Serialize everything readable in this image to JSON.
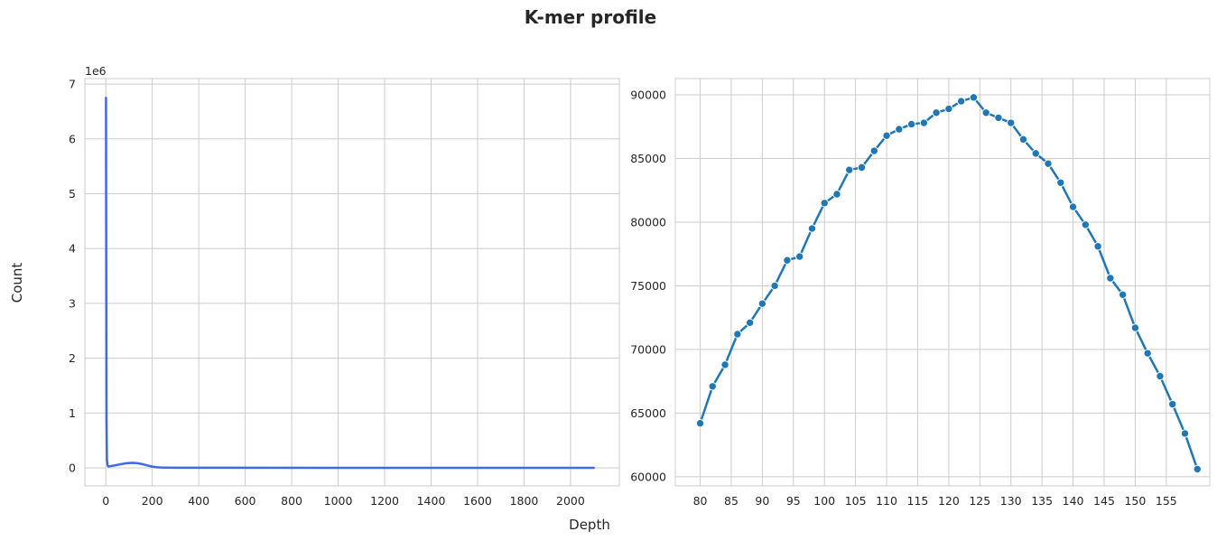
{
  "figure": {
    "title": "K-mer profile",
    "xlabel": "Depth",
    "ylabel": "Count"
  },
  "chart_data": [
    {
      "type": "line",
      "panel": "left",
      "color": "#4169e1",
      "xlim": [
        -90,
        2210
      ],
      "ylim": [
        -330000,
        7100000
      ],
      "x_ticks": [
        0,
        200,
        400,
        600,
        800,
        1000,
        1200,
        1400,
        1600,
        1800,
        2000
      ],
      "y_ticks": [
        0,
        1000000,
        2000000,
        3000000,
        4000000,
        5000000,
        6000000,
        7000000
      ],
      "y_tick_labels": [
        "0",
        "1",
        "2",
        "3",
        "4",
        "5",
        "6",
        "7"
      ],
      "y_offset_label": "1e6",
      "grid": true,
      "x": [
        1,
        2,
        3,
        5,
        8,
        12,
        20,
        40,
        60,
        80,
        100,
        120,
        140,
        160,
        180,
        200,
        220,
        240,
        300,
        500,
        1000,
        1500,
        2000,
        2100
      ],
      "y": [
        6750000,
        3500000,
        900000,
        150000,
        40000,
        25000,
        30000,
        45000,
        62000,
        78000,
        88000,
        90000,
        82000,
        65000,
        42000,
        22000,
        10000,
        5000,
        2000,
        1000,
        500,
        300,
        200,
        100
      ]
    },
    {
      "type": "line",
      "panel": "right",
      "color": "#1f77b4",
      "markers": true,
      "xlim": [
        76,
        162
      ],
      "ylim": [
        59280,
        91280
      ],
      "x_ticks": [
        80,
        85,
        90,
        95,
        100,
        105,
        110,
        115,
        120,
        125,
        130,
        135,
        140,
        145,
        150,
        155
      ],
      "y_ticks": [
        60000,
        65000,
        70000,
        75000,
        80000,
        85000,
        90000
      ],
      "grid": true,
      "x": [
        80,
        82,
        84,
        86,
        88,
        90,
        92,
        94,
        96,
        98,
        100,
        102,
        104,
        106,
        108,
        110,
        112,
        114,
        116,
        118,
        120,
        122,
        124,
        126,
        128,
        130,
        132,
        134,
        136,
        138,
        140,
        142,
        144,
        146,
        148,
        150,
        152,
        154,
        156,
        158,
        160
      ],
      "y": [
        64200,
        67100,
        68800,
        71200,
        72100,
        73600,
        75000,
        77000,
        77300,
        79500,
        81500,
        82200,
        84100,
        84300,
        85600,
        86800,
        87300,
        87700,
        87800,
        88600,
        88900,
        89500,
        89800,
        88600,
        88200,
        87800,
        86500,
        85400,
        84600,
        83100,
        81200,
        79800,
        78100,
        75600,
        74300,
        71700,
        69700,
        67900,
        65700,
        63400,
        60600
      ]
    }
  ]
}
